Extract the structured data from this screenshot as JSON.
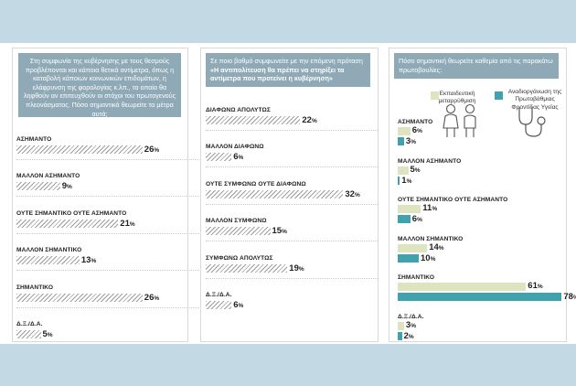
{
  "colors": {
    "band": "#c3d9e3",
    "question_box": "#8faab6",
    "hatch": "#9e9e9e",
    "series_education": "#dde4bf",
    "series_health": "#40a2ac"
  },
  "panel1": {
    "question": "Στη συμφωνία της κυβέρνησης με τους θεσμούς προβλέπονται και κάποια θετικά αντίμετρα, όπως η καταβολή κάποιων κοινωνικών επιδομάτων, η ελάφρυνση της φορολογίας κ.λπ., τα οποία θα ληφθούν αν επιτευχθούν οι στόχοι του πρωτογενούς πλεονάσματος. Πόσο σημαντικά θεωρείτε τα μέτρα αυτά;"
  },
  "panel2": {
    "question_plain": "Σε ποιο βαθμό συμφωνείτε με την επόμενη πρόταση",
    "question_bold": "«Η αντιπολίτευση θα πρέπει να στηρίξει τα αντίμετρα που προτείνει η κυβέρνηση»"
  },
  "panel3": {
    "question": "Πόσο σημαντική θεωρείτε καθεμία από τις παρακάτω πρωτοβουλίες:",
    "legend": [
      {
        "name": "Εκπαιδευτική μεταρρύθμιση",
        "icon": "students-icon"
      },
      {
        "name": "Αναδιοργάνωση της Πρωτοβάθμιας Φροντίδας Υγείας",
        "icon": "stethoscope-icon"
      }
    ]
  },
  "chart_data": [
    {
      "type": "bar",
      "categories": [
        "ΑΣΗΜΑΝΤΟ",
        "ΜΑΛΛΟΝ ΑΣΗΜΑΝΤΟ",
        "ΟΥΤΕ ΣΗΜΑΝΤΙΚΟ ΟΥΤΕ ΑΣΗΜΑΝΤΟ",
        "ΜΑΛΛΟΝ ΣΗΜΑΝΤΙΚΟ",
        "ΣΗΜΑΝΤΙΚΟ",
        "Δ.Ξ./Δ.Α."
      ],
      "values": [
        26,
        9,
        21,
        13,
        26,
        5
      ],
      "unit": "%",
      "xlim": [
        0,
        100
      ]
    },
    {
      "type": "bar",
      "categories": [
        "ΔΙΑΦΩΝΩ ΑΠΟΛΥΤΩΣ",
        "ΜΑΛΛΟΝ ΔΙΑΦΩΝΩ",
        "ΟΥΤΕ ΣΥΜΦΩΝΩ ΟΥΤΕ ΔΙΑΦΩΝΩ",
        "ΜΑΛΛΟΝ ΣΥΜΦΩΝΩ",
        "ΣΥΜΦΩΝΩ ΑΠΟΛΥΤΩΣ",
        "Δ.Ξ./Δ.Α."
      ],
      "values": [
        22,
        6,
        32,
        15,
        19,
        6
      ],
      "unit": "%",
      "xlim": [
        0,
        100
      ]
    },
    {
      "type": "bar",
      "categories": [
        "ΑΣΗΜΑΝΤΟ",
        "ΜΑΛΛΟΝ ΑΣΗΜΑΝΤΟ",
        "ΟΥΤΕ ΣΗΜΑΝΤΙΚΟ ΟΥΤΕ ΑΣΗΜΑΝΤΟ",
        "ΜΑΛΛΟΝ ΣΗΜΑΝΤΙΚΟ",
        "ΣΗΜΑΝΤΙΚΟ",
        "Δ.Ξ./Δ.Α."
      ],
      "series": [
        {
          "name": "Εκπαιδευτική μεταρρύθμιση",
          "values": [
            6,
            5,
            11,
            14,
            61,
            3
          ]
        },
        {
          "name": "Αναδιοργάνωση της Πρωτοβάθμιας Φροντίδας Υγείας",
          "values": [
            3,
            1,
            6,
            10,
            78,
            2
          ]
        }
      ],
      "unit": "%",
      "xlim": [
        0,
        100
      ]
    }
  ]
}
